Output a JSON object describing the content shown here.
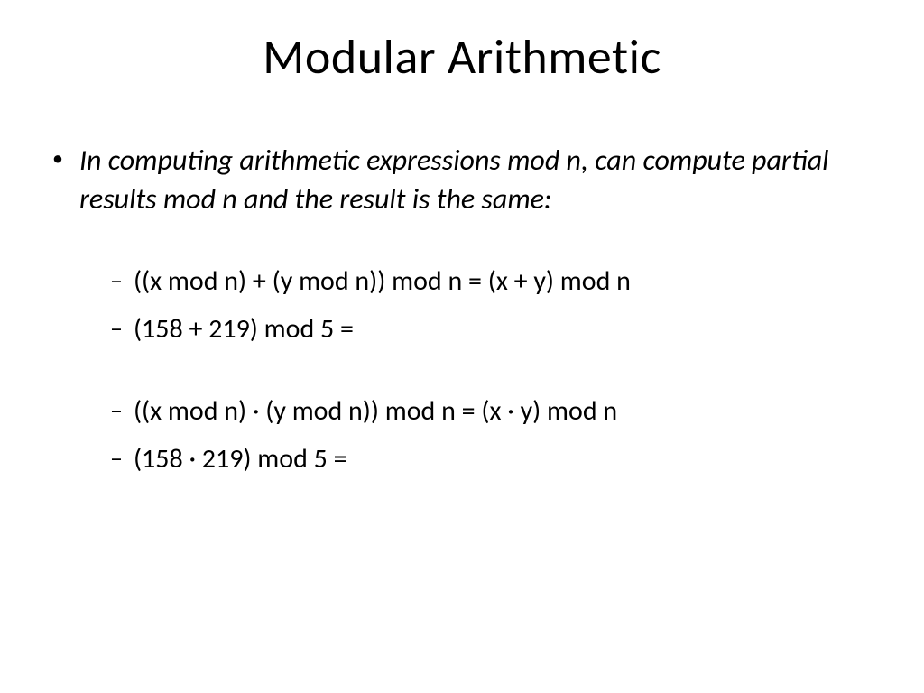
{
  "slide": {
    "title": "Modular Arithmetic",
    "main_bullet": "In computing arithmetic expressions mod n, can compute partial results mod n and the result is the same:",
    "sub_items": [
      "((x mod n) + (y mod n)) mod n = (x + y) mod n",
      "(158 + 219) mod 5 =",
      "((x mod n) · (y mod n)) mod n = (x · y) mod n",
      "(158  ·  219) mod 5 ="
    ]
  },
  "style": {
    "background_color": "#ffffff",
    "text_color": "#000000",
    "title_fontsize": 54,
    "main_fontsize": 32,
    "sub_fontsize": 30,
    "font_family": "Calibri"
  }
}
